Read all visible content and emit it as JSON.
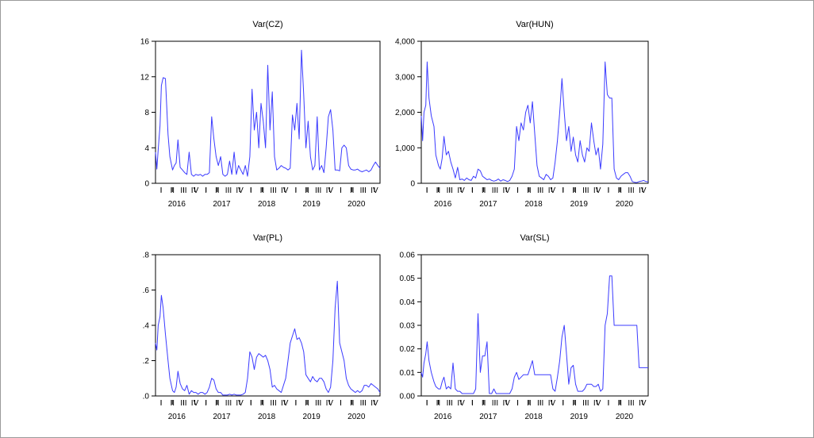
{
  "chart_data": [
    {
      "type": "line",
      "title": "Var(CZ)",
      "xlabel": "",
      "ylabel": "",
      "series_color": "#3b3bff",
      "ylim": [
        0,
        16
      ],
      "yticks": [
        "0",
        "4",
        "8",
        "12",
        "16"
      ],
      "ytick_values": [
        0,
        4,
        8,
        12,
        16
      ],
      "x_period": [
        "2016-01",
        "2020-12"
      ],
      "quarter_labels": [
        "I",
        "II",
        "III",
        "IV",
        "I",
        "II",
        "III",
        "IV",
        "I",
        "II",
        "III",
        "IV",
        "I",
        "II",
        "III",
        "IV",
        "I",
        "II",
        "III",
        "IV"
      ],
      "year_labels": [
        "2016",
        "2017",
        "2018",
        "2019",
        "2020"
      ],
      "series": [
        {
          "x": [
            2016.0,
            2016.03,
            2016.06,
            2016.1,
            2016.13,
            2016.17,
            2016.22,
            2016.28,
            2016.32,
            2016.38,
            2016.42,
            2016.46,
            2016.5,
            2016.55,
            2016.6,
            2016.65,
            2016.7,
            2016.75,
            2016.8,
            2016.85,
            2016.9,
            2016.95,
            2017.0,
            2017.05,
            2017.1,
            2017.15,
            2017.2,
            2017.25,
            2017.3,
            2017.35,
            2017.4,
            2017.45,
            2017.5,
            2017.55,
            2017.6,
            2017.65,
            2017.7,
            2017.75,
            2017.8,
            2017.85,
            2017.9,
            2017.95,
            2018.0,
            2018.05,
            2018.1,
            2018.15,
            2018.2,
            2018.25,
            2018.3,
            2018.35,
            2018.4,
            2018.45,
            2018.5,
            2018.55,
            2018.6,
            2018.65,
            2018.7,
            2018.75,
            2018.8,
            2018.85,
            2018.9,
            2018.95,
            2019.0,
            2019.05,
            2019.1,
            2019.15,
            2019.2,
            2019.25,
            2019.3,
            2019.35,
            2019.4,
            2019.45,
            2019.5,
            2019.55,
            2019.6,
            2019.65,
            2019.7,
            2019.75,
            2019.8,
            2019.85,
            2019.9,
            2019.95,
            2020.0,
            2020.05,
            2020.1,
            2020.15,
            2020.2,
            2020.25,
            2020.3,
            2020.35,
            2020.4,
            2020.45,
            2020.5,
            2020.55,
            2020.6,
            2020.65,
            2020.7,
            2020.75,
            2020.8,
            2020.85,
            2020.9,
            2020.95,
            2021.0
          ],
          "y": [
            3.5,
            1.6,
            3.8,
            6.5,
            11.0,
            11.9,
            11.8,
            5.5,
            3.0,
            1.5,
            2.0,
            2.3,
            4.9,
            1.8,
            1.5,
            1.2,
            1.0,
            3.5,
            1.0,
            0.8,
            1.0,
            0.9,
            1.0,
            0.8,
            1.0,
            1.0,
            1.2,
            7.5,
            5.0,
            3.0,
            2.0,
            3.0,
            1.0,
            0.8,
            1.0,
            2.5,
            1.0,
            3.5,
            1.0,
            2.0,
            1.5,
            1.0,
            2.0,
            0.8,
            3.0,
            10.6,
            6.0,
            8.0,
            4.0,
            9.0,
            7.0,
            4.0,
            13.3,
            6.0,
            10.3,
            3.0,
            1.5,
            1.7,
            2.0,
            1.8,
            1.7,
            1.5,
            1.7,
            7.7,
            6.0,
            9.0,
            5.0,
            15.0,
            10.0,
            4.0,
            7.0,
            3.0,
            1.5,
            2.0,
            7.5,
            1.5,
            2.0,
            1.2,
            4.0,
            7.5,
            8.3,
            6.0,
            1.5,
            1.5,
            1.4,
            4.0,
            4.3,
            4.0,
            2.0,
            1.6,
            1.5,
            1.5,
            1.6,
            1.4,
            1.3,
            1.4,
            1.5,
            1.3,
            1.5,
            2.0,
            2.4,
            2.0,
            1.7
          ]
        }
      ]
    },
    {
      "type": "line",
      "title": "Var(HUN)",
      "xlabel": "",
      "ylabel": "",
      "series_color": "#3b3bff",
      "ylim": [
        0,
        4000
      ],
      "yticks": [
        "0",
        "1,000",
        "2,000",
        "3,000",
        "4,000"
      ],
      "ytick_values": [
        0,
        1000,
        2000,
        3000,
        4000
      ],
      "x_period": [
        "2016-01",
        "2020-12"
      ],
      "quarter_labels": [
        "I",
        "II",
        "III",
        "IV",
        "I",
        "II",
        "III",
        "IV",
        "I",
        "II",
        "III",
        "IV",
        "I",
        "II",
        "III",
        "IV",
        "I",
        "II",
        "III",
        "IV"
      ],
      "year_labels": [
        "2016",
        "2017",
        "2018",
        "2019",
        "2020"
      ],
      "series": [
        {
          "x": [
            2016.0,
            2016.03,
            2016.06,
            2016.1,
            2016.13,
            2016.17,
            2016.22,
            2016.28,
            2016.32,
            2016.38,
            2016.42,
            2016.46,
            2016.5,
            2016.55,
            2016.6,
            2016.65,
            2016.7,
            2016.75,
            2016.8,
            2016.85,
            2016.9,
            2016.95,
            2017.0,
            2017.05,
            2017.1,
            2017.15,
            2017.2,
            2017.25,
            2017.3,
            2017.35,
            2017.4,
            2017.45,
            2017.5,
            2017.55,
            2017.6,
            2017.65,
            2017.7,
            2017.75,
            2017.8,
            2017.85,
            2017.9,
            2017.95,
            2018.0,
            2018.05,
            2018.1,
            2018.15,
            2018.2,
            2018.25,
            2018.3,
            2018.35,
            2018.4,
            2018.45,
            2018.5,
            2018.55,
            2018.6,
            2018.65,
            2018.7,
            2018.75,
            2018.8,
            2018.85,
            2018.9,
            2018.95,
            2019.0,
            2019.05,
            2019.1,
            2019.15,
            2019.2,
            2019.25,
            2019.3,
            2019.35,
            2019.4,
            2019.45,
            2019.5,
            2019.55,
            2019.6,
            2019.65,
            2019.7,
            2019.75,
            2019.8,
            2019.85,
            2019.9,
            2019.95,
            2020.0,
            2020.05,
            2020.1,
            2020.15,
            2020.2,
            2020.25,
            2020.3,
            2020.35,
            2020.4,
            2020.45,
            2020.5,
            2020.55,
            2020.6,
            2020.65,
            2020.7,
            2020.75,
            2020.8,
            2020.85,
            2020.9,
            2020.95,
            2021.0
          ],
          "y": [
            1900,
            1200,
            2000,
            2200,
            3420,
            2400,
            1900,
            1600,
            800,
            500,
            400,
            700,
            1320,
            800,
            900,
            600,
            400,
            150,
            450,
            100,
            120,
            80,
            150,
            100,
            80,
            200,
            150,
            400,
            350,
            200,
            150,
            100,
            120,
            80,
            60,
            80,
            120,
            60,
            100,
            80,
            50,
            80,
            200,
            400,
            1600,
            1200,
            1700,
            1500,
            2000,
            2200,
            1700,
            2300,
            1400,
            500,
            200,
            150,
            100,
            250,
            200,
            100,
            150,
            600,
            1200,
            2000,
            2950,
            2000,
            1200,
            1600,
            900,
            1300,
            800,
            600,
            1200,
            800,
            600,
            1000,
            900,
            1700,
            1200,
            800,
            1000,
            400,
            1100,
            3420,
            2500,
            2400,
            2400,
            400,
            150,
            100,
            200,
            250,
            300,
            300,
            200,
            50,
            30,
            20,
            50,
            60,
            80,
            50,
            40
          ]
        }
      ]
    },
    {
      "type": "line",
      "title": "Var(PL)",
      "xlabel": "",
      "ylabel": "",
      "series_color": "#3b3bff",
      "ylim": [
        0,
        0.8
      ],
      "yticks": [
        ".0",
        ".2",
        ".4",
        ".6",
        ".8"
      ],
      "ytick_values": [
        0,
        0.2,
        0.4,
        0.6,
        0.8
      ],
      "x_period": [
        "2016-01",
        "2020-12"
      ],
      "quarter_labels": [
        "I",
        "II",
        "III",
        "IV",
        "I",
        "II",
        "III",
        "IV",
        "I",
        "II",
        "III",
        "IV",
        "I",
        "II",
        "III",
        "IV",
        "I",
        "II",
        "III",
        "IV"
      ],
      "year_labels": [
        "2016",
        "2017",
        "2018",
        "2019",
        "2020"
      ],
      "series": [
        {
          "x": [
            2016.0,
            2016.03,
            2016.06,
            2016.1,
            2016.13,
            2016.17,
            2016.22,
            2016.28,
            2016.32,
            2016.38,
            2016.42,
            2016.46,
            2016.5,
            2016.55,
            2016.6,
            2016.65,
            2016.7,
            2016.75,
            2016.8,
            2016.85,
            2016.9,
            2016.95,
            2017.0,
            2017.05,
            2017.1,
            2017.15,
            2017.2,
            2017.25,
            2017.3,
            2017.35,
            2017.4,
            2017.45,
            2017.5,
            2017.55,
            2017.6,
            2017.65,
            2017.7,
            2017.75,
            2017.8,
            2017.85,
            2017.9,
            2017.95,
            2018.0,
            2018.05,
            2018.1,
            2018.15,
            2018.2,
            2018.25,
            2018.3,
            2018.35,
            2018.4,
            2018.45,
            2018.5,
            2018.55,
            2018.6,
            2018.65,
            2018.7,
            2018.75,
            2018.8,
            2018.85,
            2018.9,
            2018.95,
            2019.0,
            2019.05,
            2019.1,
            2019.15,
            2019.2,
            2019.25,
            2019.3,
            2019.35,
            2019.4,
            2019.45,
            2019.5,
            2019.55,
            2019.6,
            2019.65,
            2019.7,
            2019.75,
            2019.8,
            2019.85,
            2019.9,
            2019.95,
            2020.0,
            2020.05,
            2020.1,
            2020.15,
            2020.2,
            2020.25,
            2020.3,
            2020.35,
            2020.4,
            2020.45,
            2020.5,
            2020.55,
            2020.6,
            2020.65,
            2020.7,
            2020.75,
            2020.8,
            2020.85,
            2020.9,
            2020.95,
            2021.0
          ],
          "y": [
            0.3,
            0.26,
            0.4,
            0.45,
            0.57,
            0.5,
            0.35,
            0.2,
            0.1,
            0.03,
            0.02,
            0.05,
            0.14,
            0.07,
            0.04,
            0.03,
            0.06,
            0.01,
            0.03,
            0.02,
            0.02,
            0.01,
            0.02,
            0.02,
            0.01,
            0.02,
            0.05,
            0.1,
            0.09,
            0.04,
            0.02,
            0.02,
            0.005,
            0.005,
            0.005,
            0.01,
            0.005,
            0.01,
            0.005,
            0.005,
            0.005,
            0.01,
            0.02,
            0.1,
            0.25,
            0.22,
            0.15,
            0.22,
            0.24,
            0.23,
            0.22,
            0.23,
            0.2,
            0.15,
            0.05,
            0.06,
            0.04,
            0.03,
            0.02,
            0.06,
            0.1,
            0.2,
            0.3,
            0.34,
            0.38,
            0.32,
            0.33,
            0.3,
            0.25,
            0.12,
            0.1,
            0.08,
            0.11,
            0.09,
            0.08,
            0.1,
            0.1,
            0.08,
            0.04,
            0.02,
            0.05,
            0.2,
            0.5,
            0.65,
            0.3,
            0.25,
            0.2,
            0.1,
            0.06,
            0.04,
            0.03,
            0.02,
            0.03,
            0.02,
            0.03,
            0.06,
            0.06,
            0.05,
            0.07,
            0.06,
            0.05,
            0.04,
            0.02
          ]
        }
      ]
    },
    {
      "type": "line",
      "title": "Var(SL)",
      "xlabel": "",
      "ylabel": "",
      "series_color": "#3b3bff",
      "ylim": [
        0,
        0.06
      ],
      "yticks": [
        "0.00",
        "0.01",
        "0.02",
        "0.03",
        "0.04",
        "0.05",
        "0.06"
      ],
      "ytick_values": [
        0,
        0.01,
        0.02,
        0.03,
        0.04,
        0.05,
        0.06
      ],
      "x_period": [
        "2016-01",
        "2020-12"
      ],
      "quarter_labels": [
        "I",
        "II",
        "III",
        "IV",
        "I",
        "II",
        "III",
        "IV",
        "I",
        "II",
        "III",
        "IV",
        "I",
        "II",
        "III",
        "IV",
        "I",
        "II",
        "III",
        "IV"
      ],
      "year_labels": [
        "2016",
        "2017",
        "2018",
        "2019",
        "2020"
      ],
      "series": [
        {
          "x": [
            2016.0,
            2016.03,
            2016.06,
            2016.1,
            2016.13,
            2016.17,
            2016.22,
            2016.28,
            2016.32,
            2016.38,
            2016.42,
            2016.46,
            2016.5,
            2016.55,
            2016.6,
            2016.65,
            2016.7,
            2016.75,
            2016.8,
            2016.85,
            2016.9,
            2016.95,
            2017.0,
            2017.05,
            2017.1,
            2017.15,
            2017.2,
            2017.25,
            2017.3,
            2017.35,
            2017.4,
            2017.45,
            2017.5,
            2017.55,
            2017.6,
            2017.65,
            2017.7,
            2017.75,
            2017.8,
            2017.85,
            2017.9,
            2017.95,
            2018.0,
            2018.05,
            2018.1,
            2018.15,
            2018.2,
            2018.25,
            2018.3,
            2018.35,
            2018.4,
            2018.45,
            2018.5,
            2018.55,
            2018.6,
            2018.65,
            2018.7,
            2018.75,
            2018.8,
            2018.85,
            2018.9,
            2018.95,
            2019.0,
            2019.05,
            2019.1,
            2019.15,
            2019.2,
            2019.25,
            2019.3,
            2019.35,
            2019.4,
            2019.45,
            2019.5,
            2019.55,
            2019.6,
            2019.65,
            2019.7,
            2019.75,
            2019.8,
            2019.85,
            2019.9,
            2019.95,
            2020.0,
            2020.05,
            2020.1,
            2020.15,
            2020.2,
            2020.25,
            2020.3,
            2020.35,
            2020.4,
            2020.45,
            2020.5,
            2020.55,
            2020.6,
            2020.65,
            2020.7,
            2020.75,
            2020.8,
            2020.85,
            2020.9,
            2020.95,
            2021.0
          ],
          "y": [
            0.01,
            0.008,
            0.014,
            0.018,
            0.023,
            0.015,
            0.01,
            0.006,
            0.004,
            0.003,
            0.003,
            0.006,
            0.008,
            0.003,
            0.004,
            0.003,
            0.014,
            0.003,
            0.002,
            0.002,
            0.001,
            0.001,
            0.001,
            0.001,
            0.001,
            0.001,
            0.003,
            0.035,
            0.01,
            0.017,
            0.017,
            0.023,
            0.001,
            0.001,
            0.003,
            0.001,
            0.001,
            0.001,
            0.001,
            0.001,
            0.001,
            0.001,
            0.003,
            0.008,
            0.01,
            0.007,
            0.008,
            0.009,
            0.009,
            0.009,
            0.012,
            0.015,
            0.009,
            0.009,
            0.009,
            0.009,
            0.009,
            0.009,
            0.009,
            0.009,
            0.003,
            0.002,
            0.008,
            0.015,
            0.025,
            0.03,
            0.018,
            0.005,
            0.012,
            0.013,
            0.005,
            0.002,
            0.002,
            0.002,
            0.003,
            0.005,
            0.005,
            0.005,
            0.004,
            0.004,
            0.005,
            0.002,
            0.003,
            0.03,
            0.035,
            0.051,
            0.051,
            0.03,
            0.03,
            0.03,
            0.03,
            0.03,
            0.03,
            0.03,
            0.03,
            0.03,
            0.03,
            0.03,
            0.012,
            0.012,
            0.012,
            0.012,
            0.012
          ]
        }
      ]
    }
  ]
}
